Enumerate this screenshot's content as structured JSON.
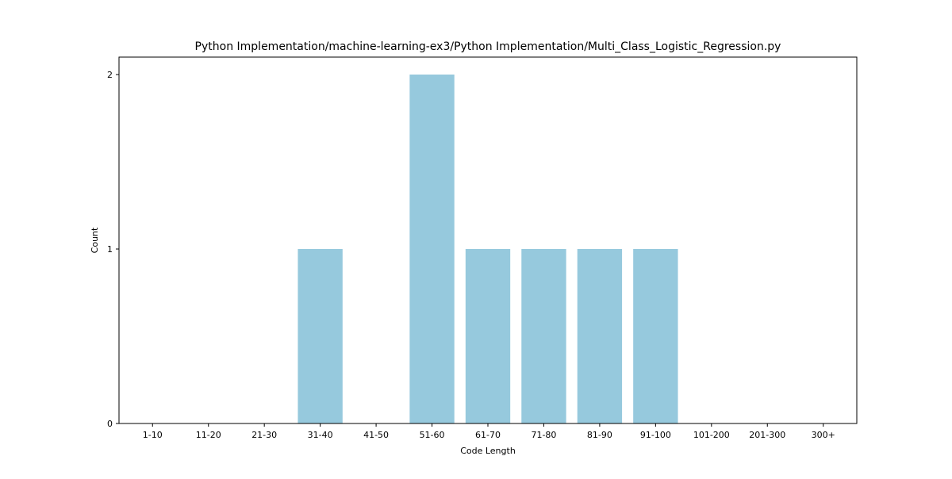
{
  "chart_data": {
    "type": "bar",
    "title": "Python Implementation/machine-learning-ex3/Python Implementation/Multi_Class_Logistic_Regression.py",
    "xlabel": "Code Length",
    "ylabel": "Count",
    "categories": [
      "1-10",
      "11-20",
      "21-30",
      "31-40",
      "41-50",
      "51-60",
      "61-70",
      "71-80",
      "81-90",
      "91-100",
      "101-200",
      "201-300",
      "300+"
    ],
    "values": [
      0,
      0,
      0,
      1,
      0,
      2,
      1,
      1,
      1,
      1,
      0,
      0,
      0
    ],
    "ylim": [
      0,
      2.1
    ],
    "yticks": [
      0,
      1,
      2
    ],
    "bar_color": "#96c9dd",
    "grid": false,
    "legend": "none"
  }
}
